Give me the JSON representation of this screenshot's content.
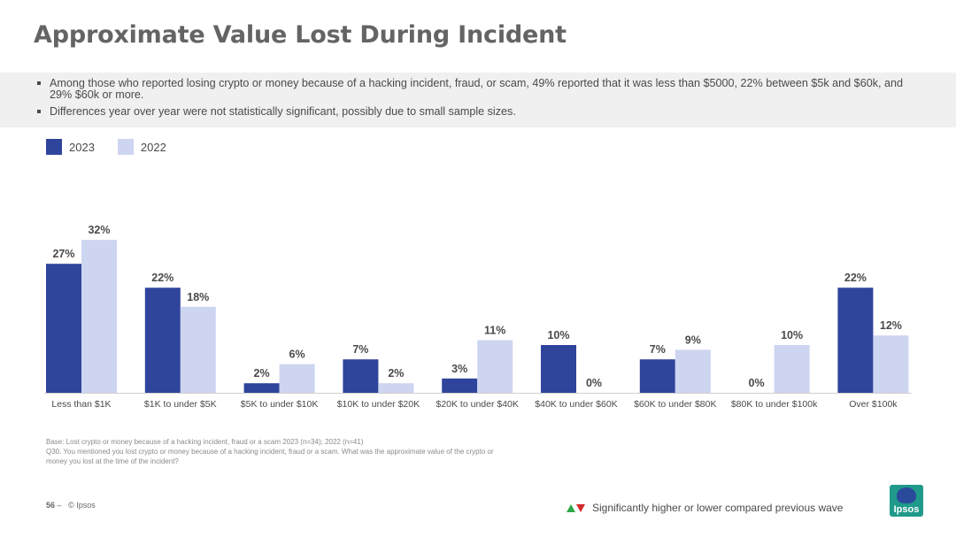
{
  "title": "Approximate Value Lost During Incident",
  "summary": [
    "Among those who reported losing crypto or money because of a hacking incident, fraud, or scam, 49% reported that it was less than $5000, 22% between $5k and $60k, and 29% $60k or more.",
    "Differences year over year were not statistically significant, possibly due to small sample sizes."
  ],
  "colors": {
    "series_2023": "#2f459c",
    "series_2022": "#cdd5f0"
  },
  "chart_data": {
    "type": "bar",
    "categories": [
      "Less than $1K",
      "$1K to under $5K",
      "$5K to under $10K",
      "$10K to under $20K",
      "$20K to under $40K",
      "$40K to under $60K",
      "$60K to under $80K",
      "$80K to under $100k",
      "Over $100k"
    ],
    "series": [
      {
        "name": "2023",
        "values": [
          27,
          22,
          2,
          7,
          3,
          10,
          7,
          0,
          22
        ]
      },
      {
        "name": "2022",
        "values": [
          32,
          18,
          6,
          2,
          11,
          0,
          9,
          10,
          12
        ]
      }
    ],
    "value_suffix": "%",
    "ylim": [
      0,
      35
    ],
    "grid": false,
    "legend_position": "top-left"
  },
  "footnote": {
    "base": "Base: Lost crypto or money because of a hacking incident, fraud or a scam 2023 (n=34); 2022 (n=41)",
    "question": "Q30. You mentioned you lost crypto or money because of a hacking incident, fraud or a scam. What was the approximate value of the crypto or money you lost at the time of the incident?"
  },
  "page_number": "56",
  "page_separator": "–",
  "copyright": "© Ipsos",
  "significance_legend": "Significantly higher or lower compared previous wave",
  "logo_text": "Ipsos"
}
